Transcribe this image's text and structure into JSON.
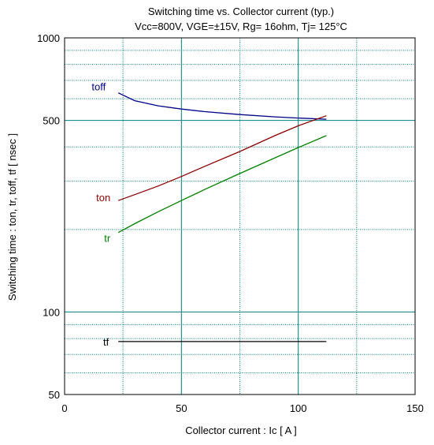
{
  "chart_data": {
    "type": "line",
    "title": "Switching time  vs.  Collector current  (typ.)",
    "subtitle": "Vcc=800V, VGE=±15V, Rg= 16ohm, Tj= 125°C",
    "xlabel": "Collector current  :  Ic  [ A ]",
    "ylabel": "Switching time  :  ton, tr, toff, tf  [ nsec ]",
    "xlim": [
      0,
      150
    ],
    "ylim": [
      50,
      1000
    ],
    "y_scale": "log",
    "grid": true,
    "x_ticks": [
      "0",
      "50",
      "100",
      "150"
    ],
    "y_ticks": [
      "50",
      "100",
      "500",
      "1000"
    ],
    "colors": {
      "toff": "#00008b",
      "ton": "#8b0000",
      "tr": "#008000",
      "tf": "#000000",
      "grid_major": "#008080",
      "grid_minor": "#008080"
    },
    "series": [
      {
        "name": "toff",
        "x": [
          23,
          30,
          40,
          50,
          60,
          75,
          90,
          100,
          112
        ],
        "y": [
          630,
          590,
          565,
          550,
          538,
          525,
          515,
          510,
          505
        ]
      },
      {
        "name": "ton",
        "x": [
          23,
          30,
          40,
          50,
          60,
          75,
          90,
          100,
          112
        ],
        "y": [
          255,
          268,
          288,
          312,
          340,
          385,
          440,
          478,
          520
        ]
      },
      {
        "name": "tr",
        "x": [
          23,
          30,
          40,
          50,
          60,
          75,
          90,
          100,
          112
        ],
        "y": [
          195,
          210,
          232,
          255,
          280,
          320,
          365,
          398,
          440
        ]
      },
      {
        "name": "tf",
        "x": [
          23,
          50,
          75,
          100,
          112
        ],
        "y": [
          78,
          78,
          78,
          78,
          78
        ]
      }
    ]
  }
}
